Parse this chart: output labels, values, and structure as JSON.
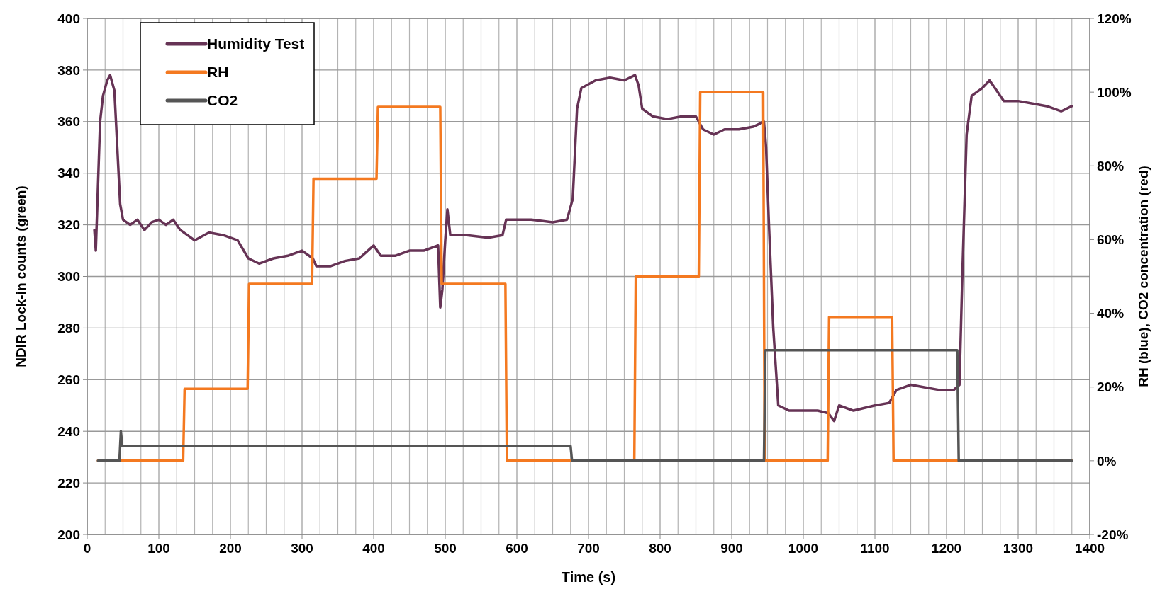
{
  "chart_data": {
    "type": "line",
    "xlabel": "Time (s)",
    "ylabel": "NDIR Lock-in counts (green)",
    "y2label": "RH (blue), CO2 concentration (red)",
    "xlim": [
      0,
      1400
    ],
    "xticks": [
      0,
      {
        "value": 25,
        "label": null
      },
      {
        "value": 50,
        "label": null
      },
      {
        "value": 75,
        "label": null
      },
      100,
      {
        "value": 125,
        "label": null
      },
      {
        "value": 150,
        "label": null
      },
      {
        "value": 175,
        "label": null
      },
      200,
      {
        "value": 225,
        "label": null
      },
      {
        "value": 250,
        "label": null
      },
      {
        "value": 275,
        "label": null
      },
      300,
      {
        "value": 325,
        "label": null
      },
      {
        "value": 350,
        "label": null
      },
      {
        "value": 375,
        "label": null
      },
      400,
      {
        "value": 425,
        "label": null
      },
      {
        "value": 450,
        "label": null
      },
      {
        "value": 475,
        "label": null
      },
      500,
      {
        "value": 525,
        "label": null
      },
      {
        "value": 550,
        "label": null
      },
      {
        "value": 575,
        "label": null
      },
      600,
      {
        "value": 625,
        "label": null
      },
      {
        "value": 650,
        "label": null
      },
      {
        "value": 675,
        "label": null
      },
      700,
      {
        "value": 725,
        "label": null
      },
      {
        "value": 750,
        "label": null
      },
      {
        "value": 775,
        "label": null
      },
      800,
      {
        "value": 825,
        "label": null
      },
      {
        "value": 850,
        "label": null
      },
      {
        "value": 875,
        "label": null
      },
      900,
      {
        "value": 925,
        "label": null
      },
      {
        "value": 950,
        "label": null
      },
      {
        "value": 975,
        "label": null
      },
      1000,
      {
        "value": 1025,
        "label": null
      },
      {
        "value": 1050,
        "label": null
      },
      {
        "value": 1075,
        "label": null
      },
      1100,
      {
        "value": 1125,
        "label": null
      },
      {
        "value": 1150,
        "label": null
      },
      {
        "value": 1175,
        "label": null
      },
      1200,
      {
        "value": 1225,
        "label": null
      },
      {
        "value": 1250,
        "label": null
      },
      {
        "value": 1275,
        "label": null
      },
      1300,
      {
        "value": 1325,
        "label": null
      },
      {
        "value": 1350,
        "label": null
      },
      {
        "value": 1375,
        "label": null
      },
      1400
    ],
    "ylim": [
      200,
      400
    ],
    "yticks": [
      200,
      220,
      240,
      260,
      280,
      300,
      320,
      340,
      360,
      380,
      400
    ],
    "y2lim": [
      -20,
      120
    ],
    "y2ticks": [
      {
        "value": -20,
        "label": "-20%"
      },
      {
        "value": 0,
        "label": "0%"
      },
      {
        "value": 20,
        "label": "20%"
      },
      {
        "value": 40,
        "label": "40%"
      },
      {
        "value": 60,
        "label": "60%"
      },
      {
        "value": 80,
        "label": "80%"
      },
      {
        "value": 100,
        "label": "100%"
      },
      {
        "value": 120,
        "label": "120%"
      }
    ],
    "grid": true,
    "legend": "top left",
    "series": [
      {
        "name": "Humidity Test",
        "color": "#663355",
        "x": [
          10,
          12,
          18,
          22,
          28,
          32,
          38,
          42,
          46,
          50,
          60,
          70,
          80,
          90,
          100,
          110,
          120,
          130,
          140,
          150,
          170,
          190,
          210,
          225,
          240,
          260,
          280,
          300,
          315,
          320,
          340,
          360,
          380,
          400,
          410,
          430,
          450,
          470,
          490,
          493,
          496,
          500,
          503,
          507,
          530,
          560,
          580,
          585,
          620,
          650,
          670,
          678,
          684,
          690,
          710,
          730,
          750,
          765,
          770,
          775,
          790,
          810,
          830,
          850,
          860,
          875,
          890,
          910,
          930,
          945,
          948,
          952,
          958,
          965,
          980,
          1000,
          1020,
          1035,
          1043,
          1050,
          1070,
          1100,
          1120,
          1130,
          1150,
          1170,
          1190,
          1210,
          1218,
          1222,
          1228,
          1235,
          1250,
          1260,
          1270,
          1280,
          1300,
          1320,
          1340,
          1360,
          1375
        ],
        "values": [
          318,
          310,
          360,
          370,
          376,
          378,
          372,
          350,
          328,
          322,
          320,
          322,
          318,
          321,
          322,
          320,
          322,
          318,
          316,
          314,
          317,
          316,
          314,
          307,
          305,
          307,
          308,
          310,
          307,
          304,
          304,
          306,
          307,
          312,
          308,
          308,
          310,
          310,
          312,
          288,
          295,
          314,
          326,
          316,
          316,
          315,
          316,
          322,
          322,
          321,
          322,
          330,
          365,
          373,
          376,
          377,
          376,
          378,
          374,
          365,
          362,
          361,
          362,
          362,
          357,
          355,
          357,
          357,
          358,
          360,
          350,
          320,
          280,
          250,
          248,
          248,
          248,
          247,
          244,
          250,
          248,
          250,
          251,
          256,
          258,
          257,
          256,
          256,
          258,
          300,
          355,
          370,
          373,
          376,
          372,
          368,
          368,
          367,
          366,
          364,
          366
        ]
      },
      {
        "name": "RH",
        "color": "#f47920",
        "axis": "y2",
        "x": [
          15,
          134,
          136,
          224,
          226,
          314,
          316,
          404,
          406,
          493,
          495,
          584,
          586,
          764,
          766,
          854,
          856,
          944,
          946,
          1034,
          1036,
          1124,
          1126,
          1375
        ],
        "values": [
          0,
          0,
          19.5,
          19.5,
          48,
          48,
          76.5,
          76.5,
          96,
          96,
          48,
          48,
          0,
          0,
          50,
          50,
          100,
          100,
          0,
          0,
          39,
          39,
          0,
          0
        ]
      },
      {
        "name": "CO2",
        "color": "#555555",
        "axis": "y2",
        "x": [
          15,
          45,
          47,
          49,
          675,
          677,
          945,
          947,
          1215,
          1217,
          1375
        ],
        "values": [
          0,
          0,
          8,
          4,
          4,
          0,
          0,
          30,
          30,
          0,
          0
        ]
      }
    ]
  }
}
